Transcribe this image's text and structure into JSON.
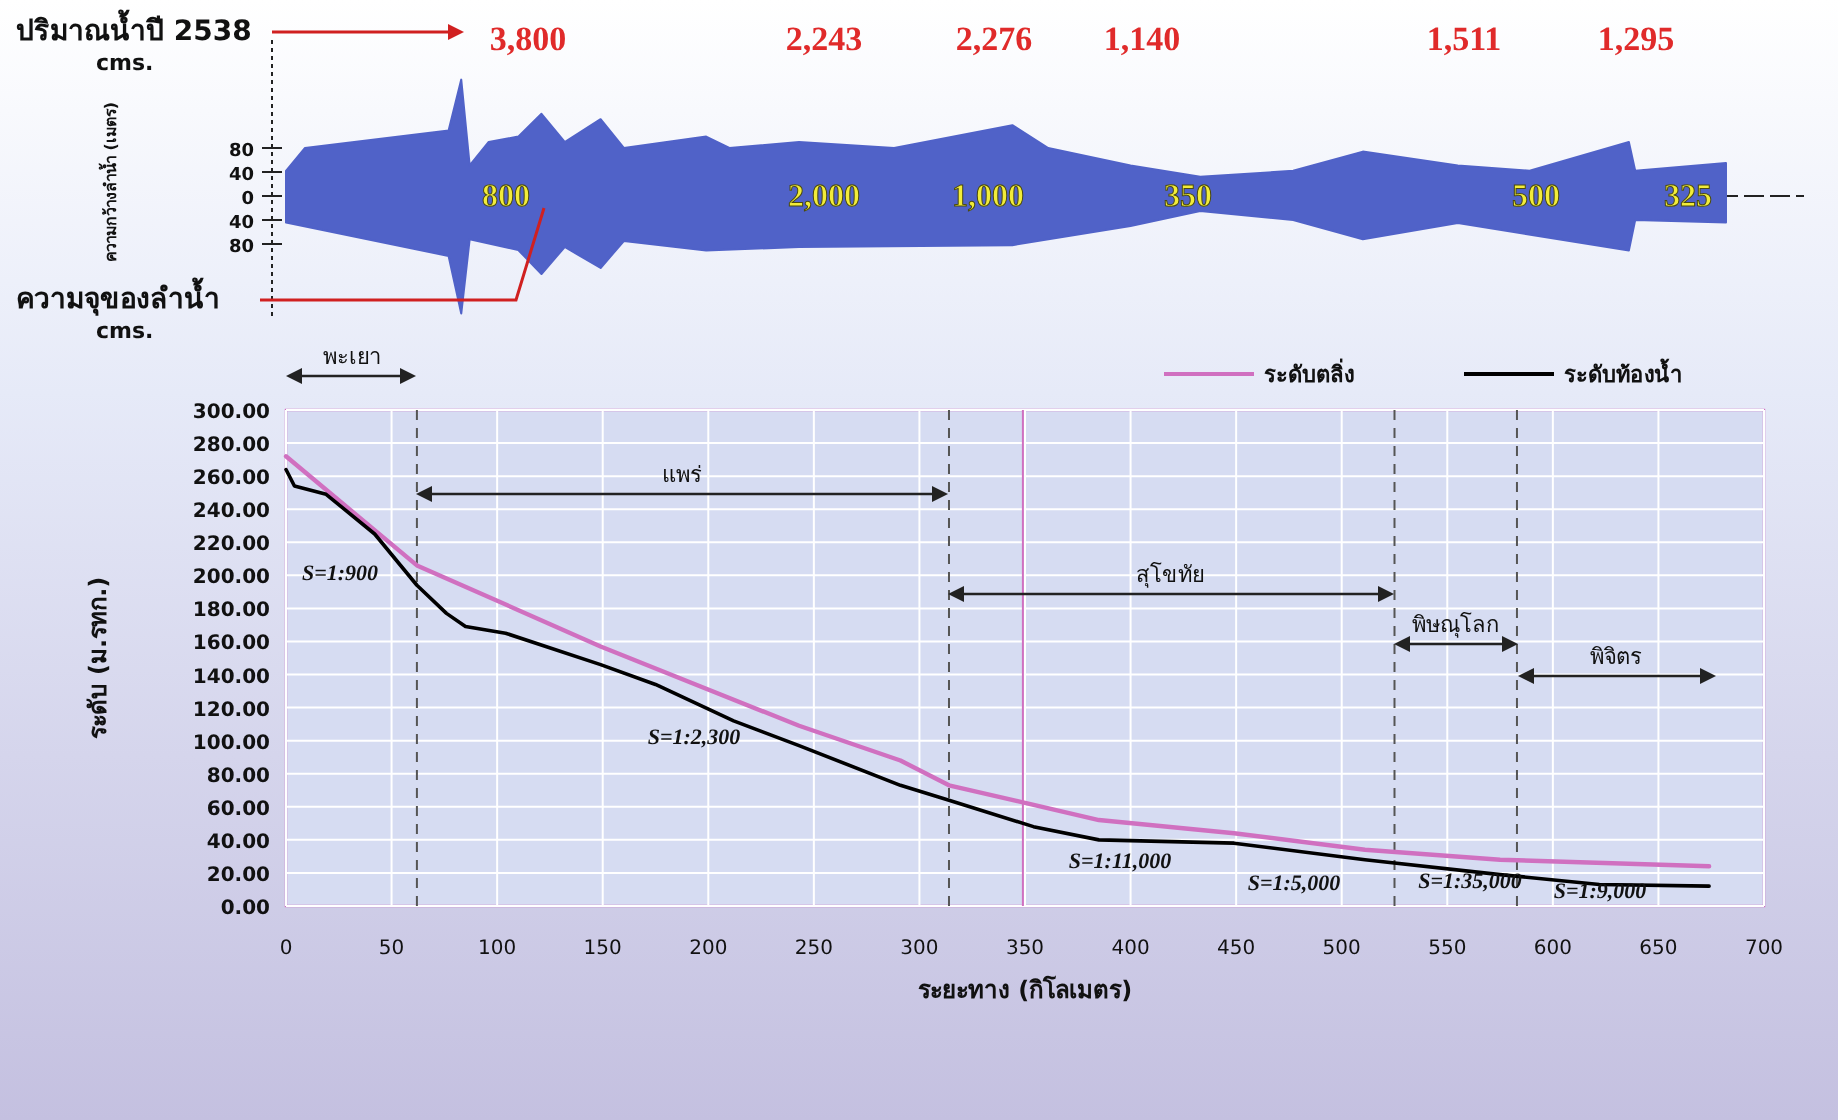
{
  "chart_data": [
    {
      "type": "area",
      "ylabel": "ความกว้างลำน้ำ (เมตร)",
      "xlim": [
        0,
        700
      ],
      "ylim": [
        -200,
        260
      ],
      "yticks": [
        {
          "value": 80,
          "label": "80"
        },
        40,
        0,
        {
          "value": -40,
          "label": "40"
        },
        {
          "value": -80,
          "label": "80"
        }
      ],
      "tick_labels": "y",
      "series": [
        {
          "color": "#5062c8",
          "x": [
            0,
            9,
            77,
            83,
            87,
            96,
            110,
            121,
            132,
            149,
            160,
            199,
            210,
            243,
            288,
            344,
            361,
            400,
            433,
            477,
            510,
            555,
            589,
            636,
            639,
            682
          ],
          "values": [
            42,
            80,
            109,
            194,
            51,
            90,
            99,
            137,
            90,
            128,
            80,
            99,
            80,
            90,
            80,
            118,
            80,
            51,
            32,
            42,
            74,
            51,
            42,
            90,
            42,
            55
          ]
        },
        {
          "color": "#5062c8",
          "x": [
            0,
            77,
            83,
            87,
            110,
            121,
            132,
            149,
            160,
            199,
            243,
            344,
            400,
            433,
            477,
            510,
            555,
            636,
            639,
            682
          ],
          "values": [
            -44,
            -100,
            -196,
            -72,
            -90,
            -130,
            -85,
            -120,
            -75,
            -91,
            -85,
            -82,
            -50,
            -25,
            -40,
            -72,
            -45,
            -91,
            -40,
            -44
          ]
        }
      ],
      "annotations": [
        "ปริมาณน้ำปี 2538\ncms.",
        "ความจุของลำน้ำ\ncms.",
        "3,800",
        "2,243",
        "2,276",
        "1,140",
        "1,511",
        "1,295",
        "800",
        "2,000",
        "1,000",
        "350",
        "500",
        "325"
      ]
    },
    {
      "type": "line",
      "xlabel": "ระยะทาง (กิโลเมตร)",
      "ylabel": "ระดับ (ม.รทก.)",
      "xlim": [
        0,
        700
      ],
      "xticks": [
        0,
        50,
        100,
        150,
        200,
        250,
        300,
        350,
        400,
        450,
        500,
        550,
        600,
        650,
        700
      ],
      "ylim": [
        0,
        300
      ],
      "yticks": [
        {
          "value": 0,
          "label": "0.00"
        },
        {
          "value": 20,
          "label": "20.00"
        },
        {
          "value": 40,
          "label": "40.00"
        },
        {
          "value": 60,
          "label": "60.00"
        },
        {
          "value": 80,
          "label": "80.00"
        },
        {
          "value": 100,
          "label": "100.00"
        },
        {
          "value": 120,
          "label": "120.00"
        },
        {
          "value": 140,
          "label": "140.00"
        },
        {
          "value": 160,
          "label": "160.00"
        },
        {
          "value": 180,
          "label": "180.00"
        },
        {
          "value": 200,
          "label": "200.00"
        },
        {
          "value": 220,
          "label": "220.00"
        },
        {
          "value": 240,
          "label": "240.00"
        },
        {
          "value": 260,
          "label": "260.00"
        },
        {
          "value": 280,
          "label": "280.00"
        },
        {
          "value": 300,
          "label": "300.00"
        }
      ],
      "grid": true,
      "legend": "top right",
      "series": [
        {
          "name": "ระดับตลิ่ง",
          "color": "#d070c0",
          "x": [
            0,
            62,
            149,
            243,
            291,
            314,
            385,
            449,
            511,
            575,
            674
          ],
          "values": [
            272,
            206,
            157,
            109,
            88,
            73,
            52,
            44,
            34,
            28,
            24
          ]
        },
        {
          "name": "ระดับท้องน้ำ",
          "color": "#000000",
          "x": [
            0,
            4,
            19,
            42,
            62,
            76,
            85,
            104,
            149,
            175,
            212,
            243,
            291,
            314,
            354,
            385,
            449,
            511,
            575,
            622,
            674
          ],
          "values": [
            264,
            254,
            249,
            225,
            194,
            177,
            169,
            165,
            146,
            134,
            112,
            97,
            73,
            64,
            48,
            40,
            38,
            28,
            19,
            13,
            12
          ]
        }
      ],
      "ref_lines": [
        {
          "axis": "x",
          "value": 62,
          "line_style": "dashed"
        },
        {
          "axis": "x",
          "value": 314,
          "line_style": "dashed"
        },
        {
          "axis": "x",
          "value": 349,
          "color": "#d070c0",
          "line_style": "solid"
        },
        {
          "axis": "x",
          "value": 525,
          "line_style": "dashed"
        },
        {
          "axis": "x",
          "value": 583,
          "line_style": "dashed"
        }
      ],
      "annotations": [
        "พะเยา",
        "แพร่",
        "สุโขทัย",
        "พิษณุโลก",
        "พิจิตร",
        "S=1:900",
        "S=1:2,300",
        "S=1:11,000",
        "S=1:5,000",
        "S=1:35,000",
        "S=1:9,000"
      ]
    }
  ]
}
